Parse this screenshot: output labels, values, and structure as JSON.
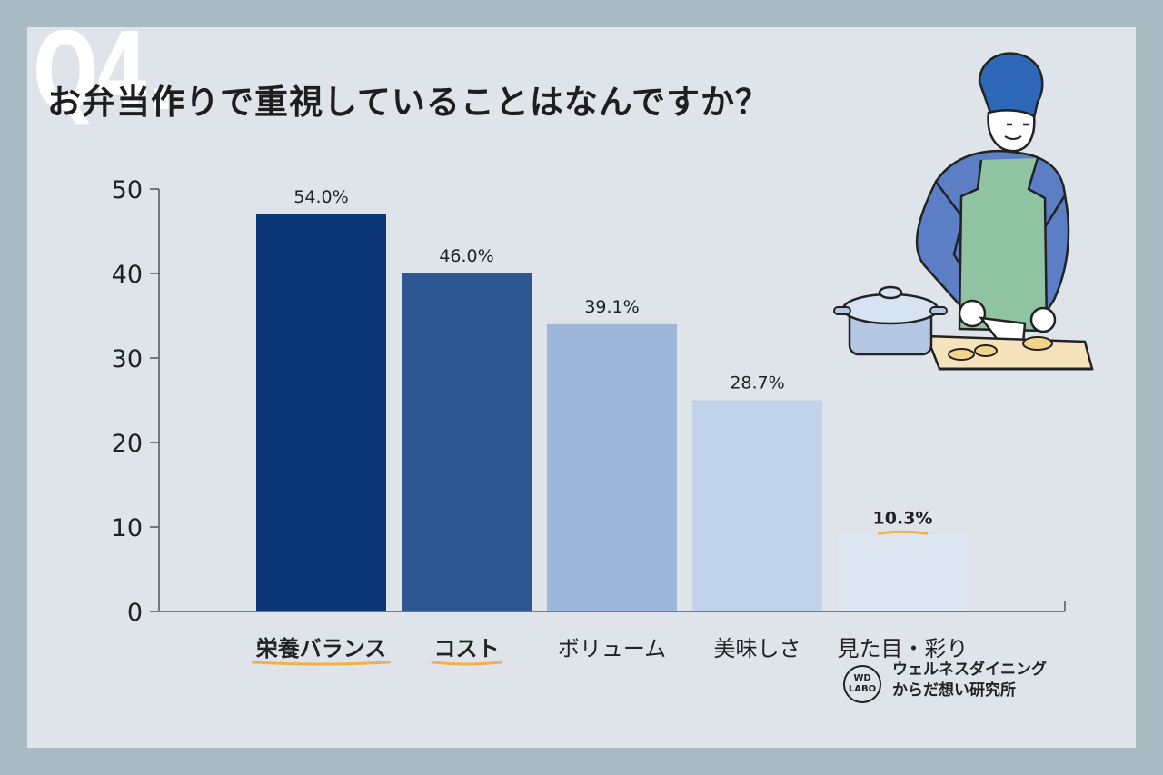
{
  "header": {
    "q_number": "Q4.",
    "title": "お弁当作りで重視していることはなんですか？"
  },
  "logo": {
    "badge_line1": "WD",
    "badge_line2": "LABO",
    "text_line1": "ウェルネスダイニング",
    "text_line2": "からだ想い研究所"
  },
  "colors": {
    "background": "#dfe4ea",
    "frame": "#a9bcc4",
    "underline_accent": "#f2b04a"
  },
  "chart_data": {
    "type": "bar",
    "title": "お弁当作りで重視していることはなんですか？",
    "categories": [
      "栄養バランス",
      "コスト",
      "ボリューム",
      "美味しさ",
      "見た目・彩り"
    ],
    "values": [
      47,
      40,
      34,
      25,
      9
    ],
    "data_labels": [
      "54.0%",
      "46.0%",
      "39.1%",
      "28.7%",
      "10.3%"
    ],
    "bar_colors": [
      "#0b3778",
      "#2d5790",
      "#9db6d9",
      "#c1d3ea",
      "#dde6f1"
    ],
    "highlighted_categories": [
      "栄養バランス",
      "コスト"
    ],
    "highlighted_labels": [
      "10.3%"
    ],
    "yticks": [
      0,
      10,
      20,
      30,
      40,
      50
    ],
    "ylim": [
      0,
      50
    ],
    "xlabel": "",
    "ylabel": "",
    "grid": false,
    "legend": "none"
  }
}
